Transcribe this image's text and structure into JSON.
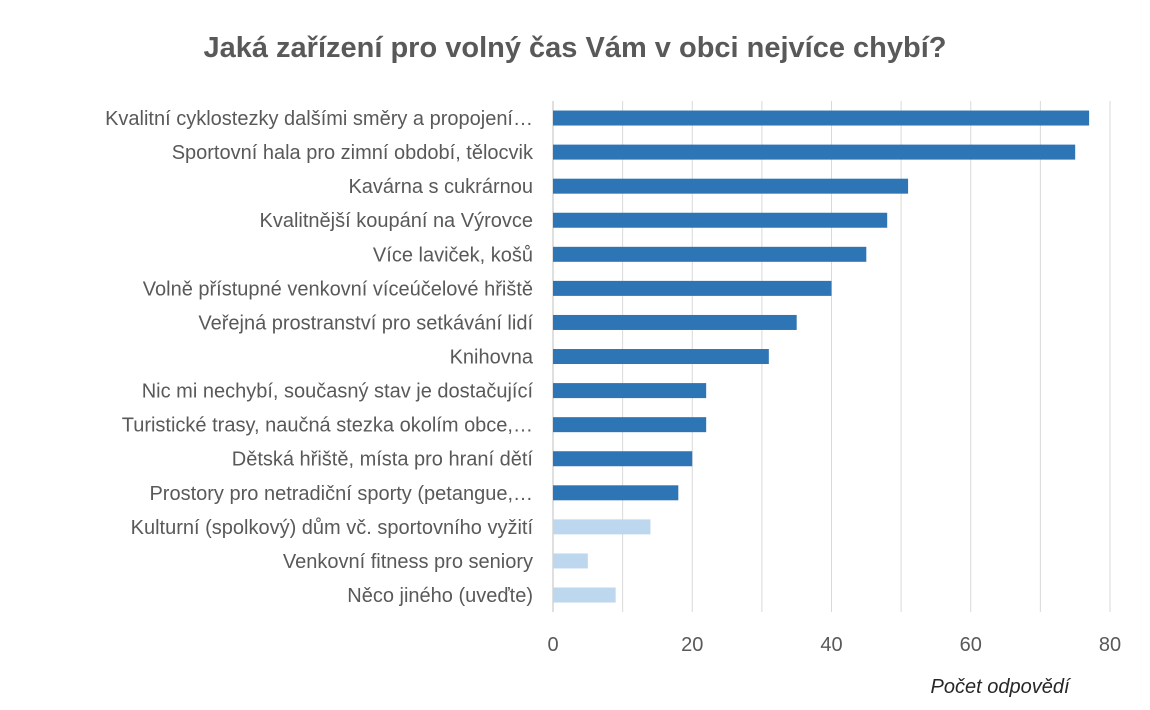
{
  "chart_data": {
    "type": "bar",
    "orientation": "horizontal",
    "title": "Jaká zařízení pro volný čas Vám v obci nejvíce chybí?",
    "xlabel": "Počet odpovědí",
    "ylabel": "",
    "xlim": [
      0,
      80
    ],
    "x_ticks": [
      "0",
      "20",
      "40",
      "60",
      "80"
    ],
    "grid": true,
    "categories": [
      "Kvalitní cyklostezky dalšími směry a propojení…",
      "Sportovní hala pro zimní období, tělocvik",
      "Kavárna s cukrárnou",
      "Kvalitnější koupání na Výrovce",
      "Více laviček, košů",
      "Volně přístupné venkovní víceúčelové hřiště",
      "Veřejná prostranství pro setkávání lidí",
      "Knihovna",
      "Nic mi nechybí, současný stav je dostačující",
      "Turistické trasy, naučná stezka okolím obce,…",
      "Dětská hřiště, místa pro hraní dětí",
      "Prostory pro netradiční sporty (petangue,…",
      "Kulturní (spolkový) dům vč. sportovního vyžití",
      "Venkovní fitness pro seniory",
      "Něco jiného (uveďte)"
    ],
    "values": [
      77,
      75,
      51,
      48,
      45,
      40,
      35,
      31,
      22,
      22,
      20,
      18,
      14,
      5,
      9
    ],
    "colors": [
      "#2e75b6",
      "#2e75b6",
      "#2e75b6",
      "#2e75b6",
      "#2e75b6",
      "#2e75b6",
      "#2e75b6",
      "#2e75b6",
      "#2e75b6",
      "#2e75b6",
      "#2e75b6",
      "#2e75b6",
      "#bdd7ee",
      "#bdd7ee",
      "#bdd7ee"
    ],
    "grid_color": "#d9d9d9"
  }
}
